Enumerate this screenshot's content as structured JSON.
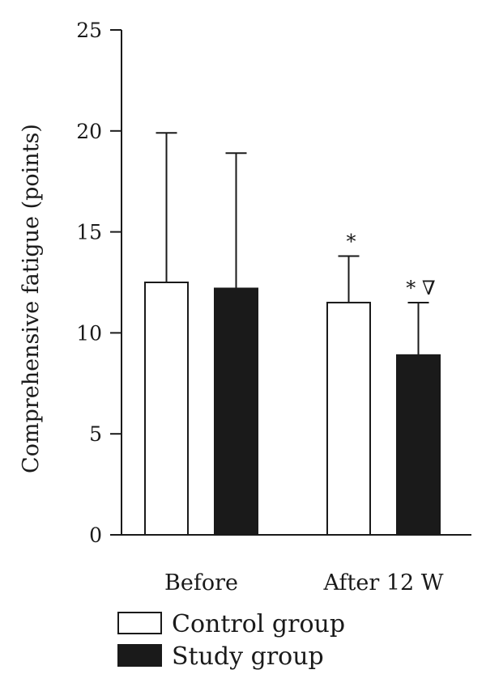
{
  "chart_data": {
    "type": "bar",
    "title": "",
    "xlabel": "",
    "ylabel": "Comprehensive fatigue (points)",
    "ylim": [
      0,
      25
    ],
    "yticks": [
      0,
      5,
      10,
      15,
      20,
      25
    ],
    "categories": [
      "Before",
      "After 12 W"
    ],
    "series": [
      {
        "name": "Control group",
        "values": [
          12.5,
          11.5
        ],
        "errors": [
          7.4,
          2.3
        ],
        "color": "#ffffff",
        "stroke": "#1a1a1a",
        "annotations": [
          "",
          "*"
        ]
      },
      {
        "name": "Study group",
        "values": [
          12.2,
          8.9
        ],
        "errors": [
          6.7,
          2.6
        ],
        "color": "#1a1a1a",
        "stroke": "#1a1a1a",
        "annotations": [
          "",
          "* ∇"
        ]
      }
    ],
    "grid": false,
    "legend_position": "bottom-left"
  }
}
